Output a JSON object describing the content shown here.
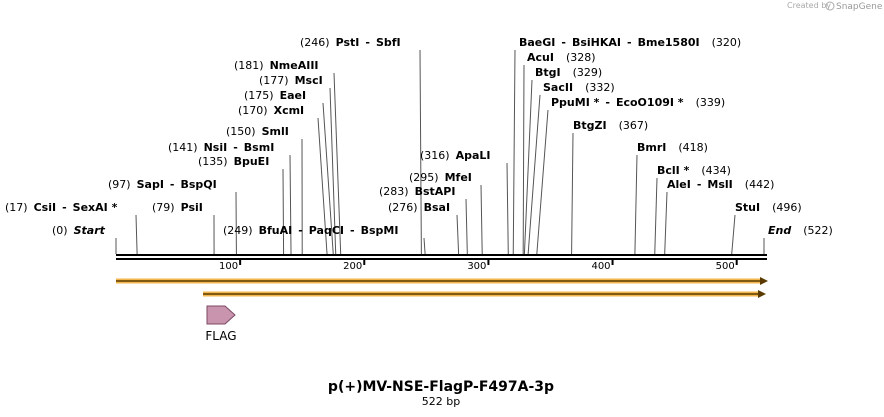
{
  "credit": {
    "prefix": "Created by",
    "brand": "SnapGene"
  },
  "title": "p(+)MV-NSE-FlagP-F497A-3p",
  "length": "522 bp",
  "ends": [
    {
      "name": "Start",
      "position": {
        "value": 0,
        "label": "(0)"
      }
    },
    {
      "name": "End",
      "position": {
        "value": 522,
        "label": "(522)"
      }
    }
  ],
  "ruler_ticks": [
    100,
    200,
    300,
    400,
    500
  ],
  "sites": [
    {
      "enzymes": [
        "CsiI",
        "SexAI *"
      ],
      "position": {
        "value": 17,
        "label": "(17)"
      }
    },
    {
      "enzymes": [
        "PsiI"
      ],
      "position": {
        "value": 79,
        "label": "(79)"
      }
    },
    {
      "enzymes": [
        "SapI",
        "BspQI"
      ],
      "position": {
        "value": 97,
        "label": "(97)"
      }
    },
    {
      "enzymes": [
        "BpuEI"
      ],
      "position": {
        "value": 135,
        "label": "(135)"
      }
    },
    {
      "enzymes": [
        "NsiI",
        "BsmI"
      ],
      "position": {
        "value": 141,
        "label": "(141)"
      }
    },
    {
      "enzymes": [
        "SmlI"
      ],
      "position": {
        "value": 150,
        "label": "(150)"
      }
    },
    {
      "enzymes": [
        "XcmI"
      ],
      "position": {
        "value": 170,
        "label": "(170)"
      }
    },
    {
      "enzymes": [
        "EaeI"
      ],
      "position": {
        "value": 175,
        "label": "(175)"
      }
    },
    {
      "enzymes": [
        "MscI"
      ],
      "position": {
        "value": 177,
        "label": "(177)"
      }
    },
    {
      "enzymes": [
        "NmeAIII"
      ],
      "position": {
        "value": 181,
        "label": "(181)"
      }
    },
    {
      "enzymes": [
        "PstI",
        "SbfI"
      ],
      "position": {
        "value": 246,
        "label": "(246)"
      }
    },
    {
      "enzymes": [
        "BfuAI",
        "PaqCI",
        "BspMI"
      ],
      "position": {
        "value": 249,
        "label": "(249)"
      }
    },
    {
      "enzymes": [
        "BsaI"
      ],
      "position": {
        "value": 276,
        "label": "(276)"
      }
    },
    {
      "enzymes": [
        "BstAPI"
      ],
      "position": {
        "value": 283,
        "label": "(283)"
      }
    },
    {
      "enzymes": [
        "MfeI"
      ],
      "position": {
        "value": 295,
        "label": "(295)"
      }
    },
    {
      "enzymes": [
        "ApaLI"
      ],
      "position": {
        "value": 316,
        "label": "(316)"
      }
    },
    {
      "enzymes": [
        "BaeGI",
        "BsiHKAI",
        "Bme1580I"
      ],
      "position": {
        "value": 320,
        "label": "(320)"
      }
    },
    {
      "enzymes": [
        "AcuI"
      ],
      "position": {
        "value": 328,
        "label": "(328)"
      }
    },
    {
      "enzymes": [
        "BtgI"
      ],
      "position": {
        "value": 329,
        "label": "(329)"
      }
    },
    {
      "enzymes": [
        "SacII"
      ],
      "position": {
        "value": 332,
        "label": "(332)"
      }
    },
    {
      "enzymes": [
        "PpuMI *",
        "EcoO109I *"
      ],
      "position": {
        "value": 339,
        "label": "(339)"
      }
    },
    {
      "enzymes": [
        "BtgZI"
      ],
      "position": {
        "value": 367,
        "label": "(367)"
      }
    },
    {
      "enzymes": [
        "BmrI"
      ],
      "position": {
        "value": 418,
        "label": "(418)"
      }
    },
    {
      "enzymes": [
        "BclI *"
      ],
      "position": {
        "value": 434,
        "label": "(434)"
      }
    },
    {
      "enzymes": [
        "AleI",
        "MslI"
      ],
      "position": {
        "value": 442,
        "label": "(442)"
      }
    },
    {
      "enzymes": [
        "StuI"
      ],
      "position": {
        "value": 496,
        "label": "(496)"
      }
    }
  ],
  "features": [
    {
      "name": "FLAG"
    }
  ]
}
